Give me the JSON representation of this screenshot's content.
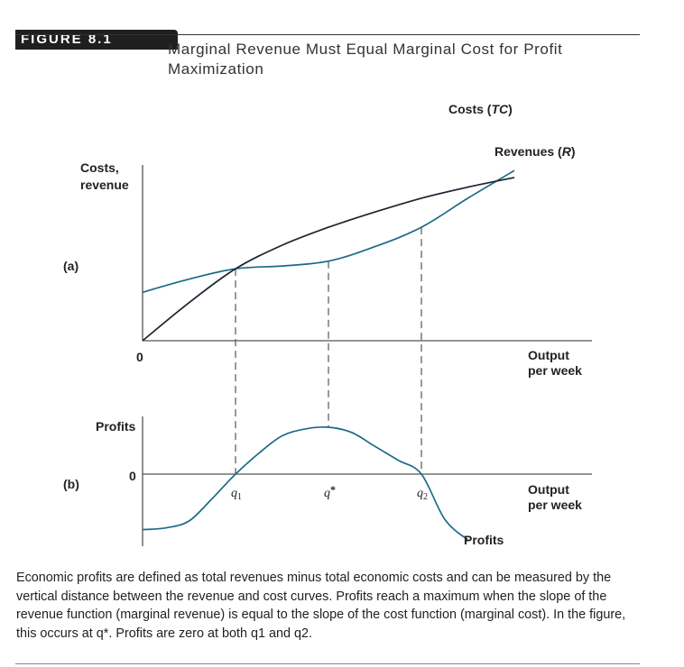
{
  "figure": {
    "label": "FIGURE 8.1",
    "title": "Marginal Revenue Must Equal Marginal Cost for Profit Maximization"
  },
  "caption": "Economic profits are defined as total revenues minus total economic costs and can be measured by the vertical distance between the revenue and cost curves. Profits reach a maximum when the slope of the revenue function (marginal revenue) is equal to the slope of the cost function (marginal cost). In the figure, this occurs at q*. Profits are zero at both q1 and q2.",
  "colors": {
    "cost_curve": "#1b6a87",
    "revenue_curve": "#1c2430",
    "profit_curve": "#1b6a87",
    "axes": "#555555"
  },
  "chart_data": [
    {
      "type": "line",
      "panel_label": "(a)",
      "ylabel_lines": [
        "Costs,",
        "revenue"
      ],
      "xlabel_lines": [
        "Output",
        "per week"
      ],
      "origin_label": "0",
      "series": [
        {
          "name": "Costs (TC)",
          "label_main": "Costs (",
          "label_italic": "TC",
          "label_end": ")",
          "x": [
            0,
            1,
            2,
            3,
            4,
            5,
            6,
            7,
            8
          ],
          "y": [
            3.5,
            4.45,
            5.2,
            5.4,
            5.75,
            6.8,
            8.2,
            10.3,
            12.3
          ]
        },
        {
          "name": "Revenues (R)",
          "label_main": "Revenues (",
          "label_italic": "R",
          "label_end": ")",
          "x": [
            0,
            1,
            2,
            3,
            4,
            5,
            6,
            7,
            8
          ],
          "y": [
            0,
            2.75,
            5.2,
            6.9,
            8.2,
            9.3,
            10.3,
            11.1,
            11.8
          ]
        }
      ],
      "markers": [
        2,
        4,
        6
      ],
      "xlim": [
        0,
        9.5
      ],
      "ylim": [
        0,
        12.7
      ]
    },
    {
      "type": "line",
      "panel_label": "(b)",
      "ylabel_lines": [
        "Profits"
      ],
      "xlabel_lines": [
        "Output",
        "per week"
      ],
      "origin_label": "0",
      "series": [
        {
          "name": "Profits",
          "x": [
            0,
            0.5,
            1,
            1.5,
            2,
            2.5,
            3,
            3.5,
            4,
            4.5,
            5,
            5.5,
            6,
            6.5,
            7
          ],
          "y": [
            -1.6,
            -1.55,
            -1.35,
            -0.7,
            0,
            0.6,
            1.1,
            1.3,
            1.35,
            1.2,
            0.8,
            0.4,
            0,
            -1.3,
            -1.9
          ]
        }
      ],
      "xticks": [
        {
          "x": 2,
          "label_main": "q",
          "label_sub": "1",
          "label_sup": ""
        },
        {
          "x": 4,
          "label_main": "q",
          "label_sub": "",
          "label_sup": "*"
        },
        {
          "x": 6,
          "label_main": "q",
          "label_sub": "2",
          "label_sup": ""
        }
      ],
      "xlim": [
        0,
        9.5
      ],
      "ylim": [
        -2.5,
        2.1
      ]
    }
  ]
}
